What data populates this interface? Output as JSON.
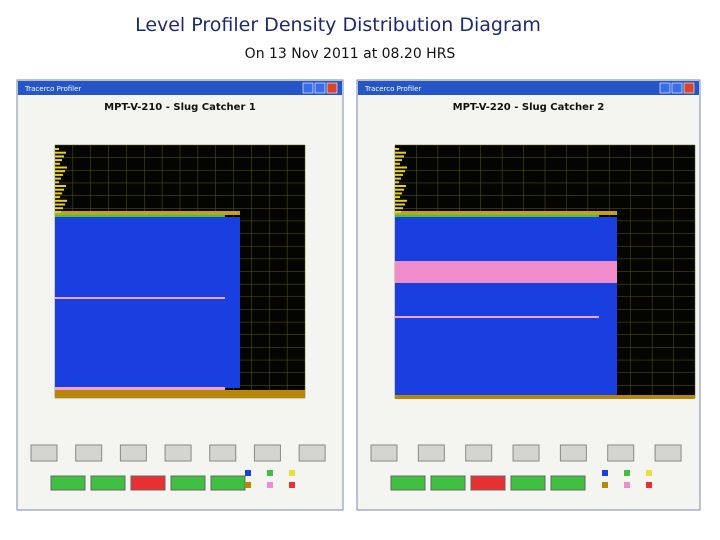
{
  "header": {
    "title": "Level Profiler Density Distribution Diagram",
    "subtitle": "On 13 Nov 2011 at 08.20 HRS"
  },
  "windows": [
    {
      "caption": "Tracerco Profiler",
      "title": "MPT-V-210 - Slug Catcher 1"
    },
    {
      "caption": "Tracerco Profiler",
      "title": "MPT-V-220 - Slug Catcher 2"
    }
  ]
}
